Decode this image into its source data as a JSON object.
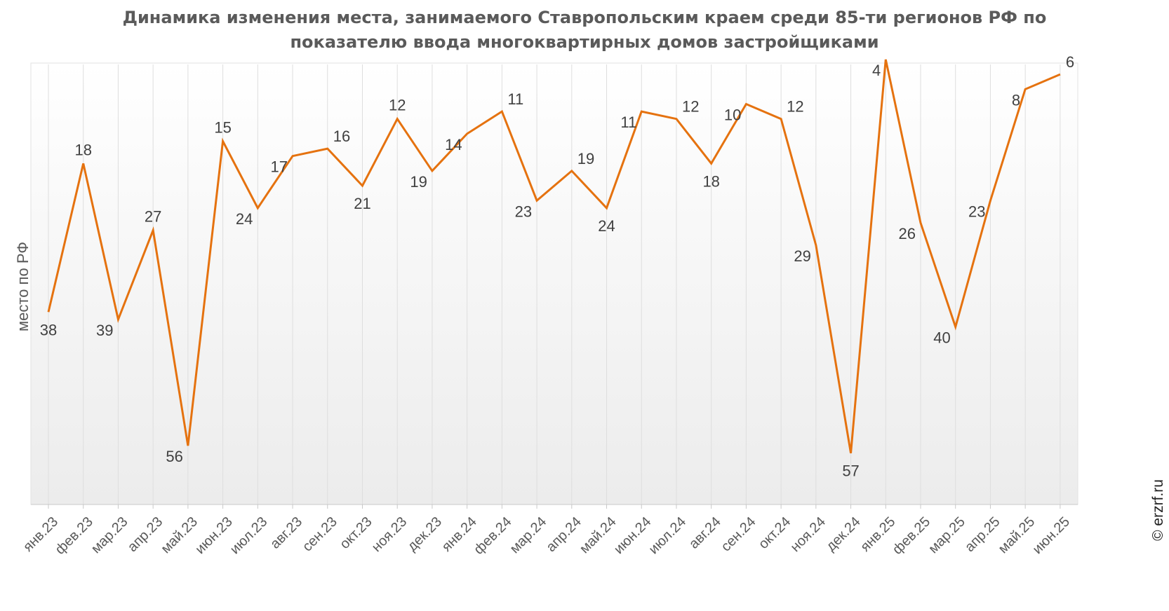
{
  "chart_data": {
    "type": "line",
    "title_line1": "Динамика изменения места, занимаемого Ставропольским краем среди 85-ти регионов РФ по",
    "title_line2": "показателю ввода многоквартирных домов застройщиками",
    "xlabel": "",
    "ylabel": "место по РФ",
    "y_reversed": true,
    "ylim": [
      1,
      60
    ],
    "grid": "vertical",
    "legend": "none",
    "categories": [
      "янв.23",
      "фев.23",
      "мар.23",
      "апр.23",
      "май.23",
      "июн.23",
      "июл.23",
      "авг.23",
      "сен.23",
      "окт.23",
      "ноя.23",
      "дек.23",
      "янв.24",
      "фев.24",
      "мар.24",
      "апр.24",
      "май.24",
      "июн.24",
      "июл.24",
      "авг.24",
      "сен.24",
      "окт.24",
      "ноя.24",
      "дек.24",
      "янв.25",
      "фев.25",
      "мар.25",
      "апр.25",
      "май.25",
      "июн.25"
    ],
    "values": [
      38,
      18,
      39,
      27,
      56,
      15,
      24,
      17,
      16,
      21,
      12,
      19,
      14,
      11,
      23,
      19,
      24,
      11,
      12,
      18,
      10,
      12,
      29,
      57,
      4,
      26,
      40,
      23,
      8,
      6
    ],
    "label_positions": [
      "below",
      "above",
      "left",
      "above",
      "left",
      "above",
      "left",
      "left",
      "right",
      "below",
      "above",
      "left",
      "left",
      "right",
      "left",
      "right",
      "below",
      "left",
      "right",
      "below",
      "left",
      "right",
      "left",
      "below",
      "left",
      "left",
      "left",
      "left",
      "left",
      "right"
    ],
    "line_color": "#e5720f"
  },
  "watermark": "© erzrf.ru"
}
